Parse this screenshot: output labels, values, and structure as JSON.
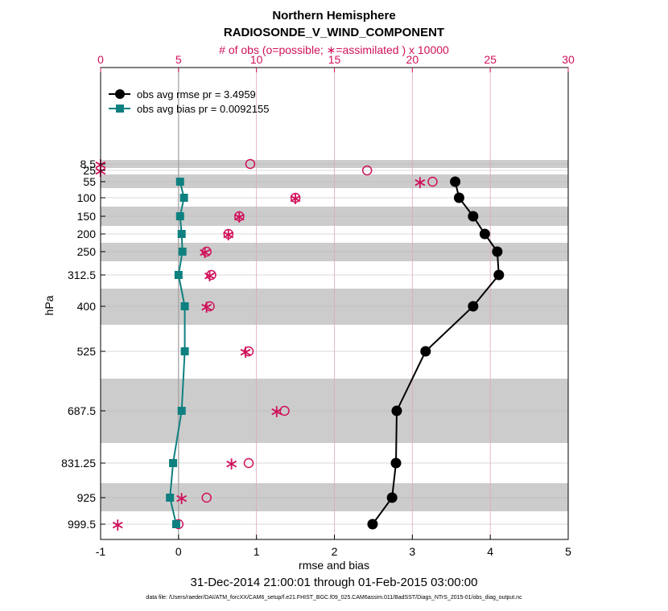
{
  "chart_data": {
    "type": "line",
    "title": "Northern Hemisphere",
    "subtitle": "RADIOSONDE_V_WIND_COMPONENT",
    "top_axis_label": "# of obs (o=possible; ∗=assimilated ) x 10000",
    "xlabel": "rmse and bias",
    "ylabel": "hPa",
    "date_range": "31-Dec-2014 21:00:01 through 01-Feb-2015 03:00:00",
    "footnote": "data file: /Users/raeder/DAI/ATM_forcXX/CAM6_setup/f.e21.FHIST_BGC.f09_025.CAM6assim.011/BadSST/Diags_NTrS_2015-01/obs_diag_output.nc",
    "xlim": [
      -1,
      5
    ],
    "xticks": [
      "-1",
      "0",
      "1",
      "2",
      "3",
      "4",
      "5"
    ],
    "top_xlim": [
      0,
      30
    ],
    "top_xticks": [
      "0",
      "5",
      "10",
      "15",
      "20",
      "25",
      "30"
    ],
    "levels": [
      "8.5",
      "25",
      "55",
      "100",
      "150",
      "200",
      "250",
      "312.5",
      "400",
      "525",
      "687.5",
      "831.25",
      "925",
      "999.5"
    ],
    "series": [
      {
        "name": "obs avg rmse",
        "legend": "obs avg rmse pr = 3.4959",
        "color": "#000000",
        "values": [
          null,
          null,
          3.55,
          3.6,
          3.78,
          3.93,
          4.09,
          4.11,
          3.78,
          3.17,
          2.8,
          2.79,
          2.74,
          2.49
        ]
      },
      {
        "name": "obs avg bias",
        "legend": "obs avg bias pr = 0.0092155",
        "color": "#0f8080",
        "values": [
          null,
          null,
          0.02,
          0.07,
          0.02,
          0.04,
          0.05,
          0.0,
          0.08,
          0.08,
          0.04,
          -0.07,
          -0.11,
          -0.03
        ]
      }
    ],
    "obs_possible": [
      9.6,
      17.1,
      21.3,
      12.5,
      8.9,
      8.2,
      6.8,
      7.1,
      7.0,
      9.5,
      11.8,
      9.5,
      6.8,
      5.0
    ],
    "obs_assimilated": [
      0.0,
      0.0,
      20.5,
      12.5,
      8.9,
      8.2,
      6.7,
      7.0,
      6.8,
      9.3,
      11.3,
      8.4,
      5.2,
      1.1
    ],
    "grid": true
  }
}
